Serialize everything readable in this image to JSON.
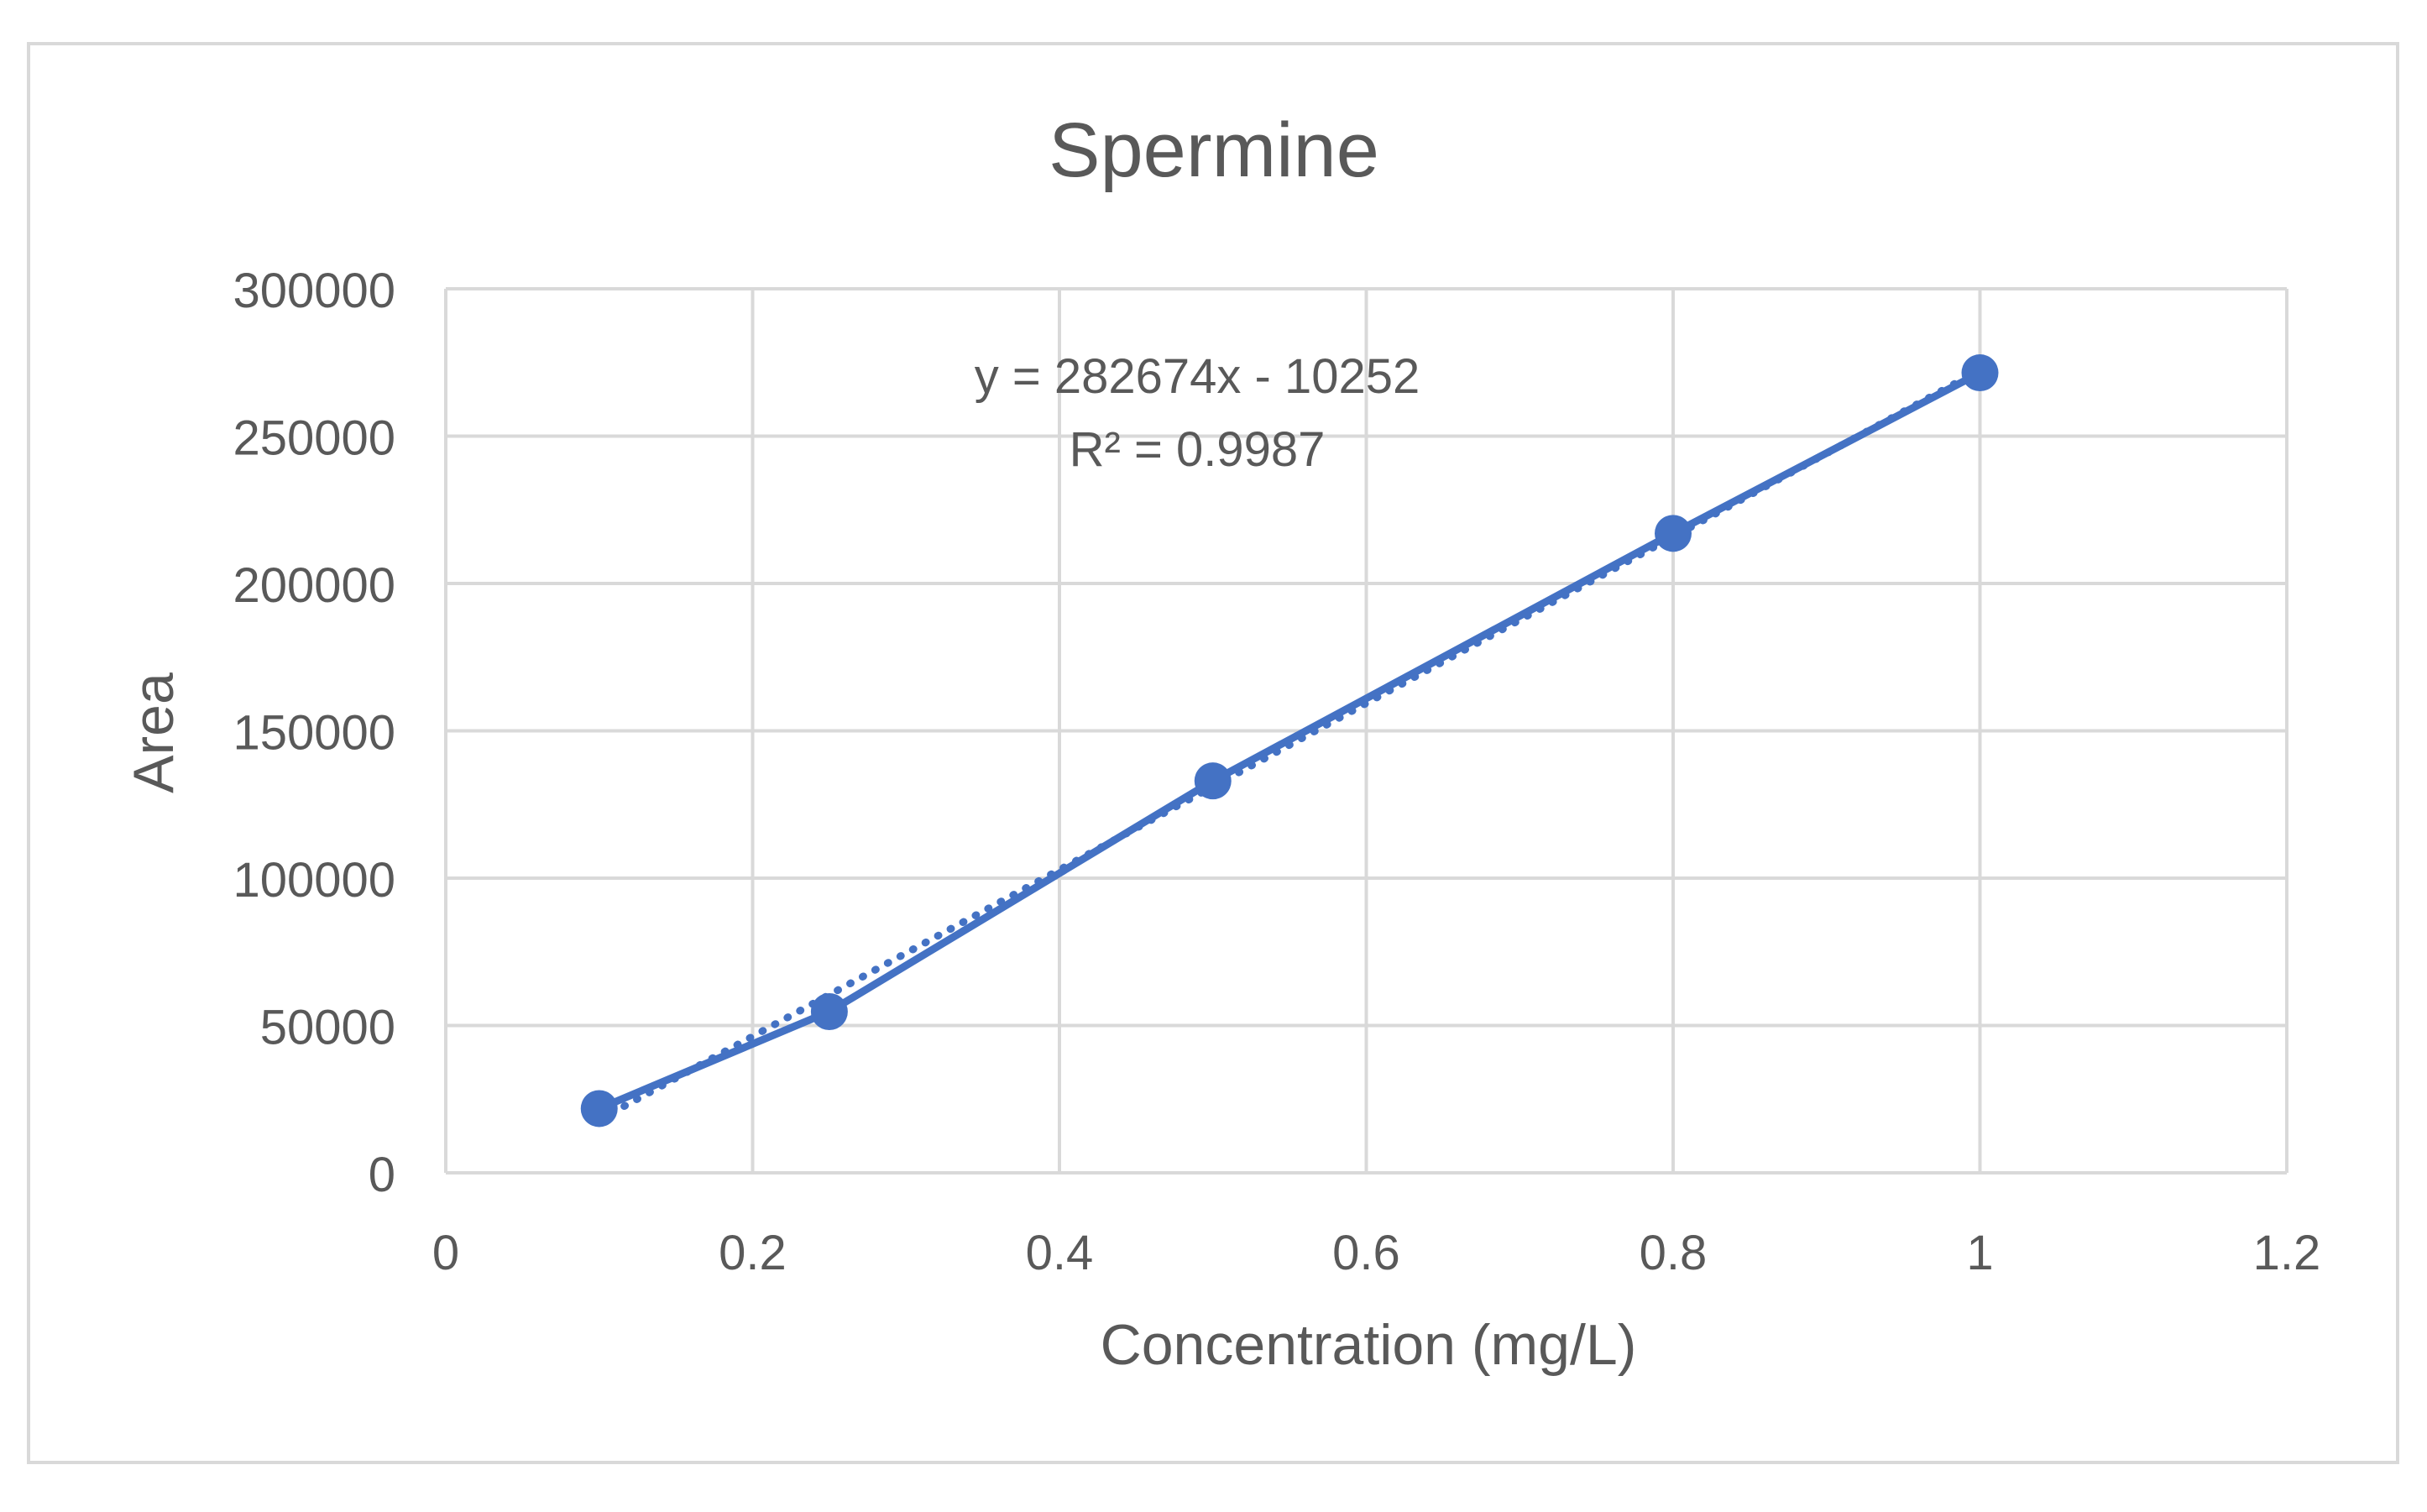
{
  "chart_data": {
    "type": "scatter",
    "title": "Spermine",
    "xlabel": "Concentration (mg/L)",
    "ylabel": "Area",
    "xlim": [
      0,
      1.2
    ],
    "ylim": [
      0,
      300000
    ],
    "x_ticks": [
      0,
      0.2,
      0.4,
      0.6,
      0.8,
      1,
      1.2
    ],
    "x_tick_labels": [
      "0",
      "0.2",
      "0.4",
      "0.6",
      "0.8",
      "1",
      "1.2"
    ],
    "y_ticks": [
      0,
      50000,
      100000,
      150000,
      200000,
      250000,
      300000
    ],
    "y_tick_labels": [
      "0",
      "50000",
      "100000",
      "150000",
      "200000",
      "250000",
      "300000"
    ],
    "grid": true,
    "series": [
      {
        "name": "Spermine",
        "x": [
          0.1,
          0.25,
          0.5,
          0.8,
          1.0
        ],
        "y": [
          21800,
          54700,
          133000,
          217000,
          271500
        ],
        "color": "#4472C4",
        "line_style": "solid",
        "markers": true
      }
    ],
    "trendline": {
      "type": "linear",
      "slope": 282674,
      "intercept": -10252,
      "x_range": [
        0.1,
        1.0
      ],
      "color": "#4472C4",
      "line_style": "dotted",
      "equation_label": "y = 282674x - 10252",
      "r2_label": "R² = 0.9987"
    }
  },
  "colors": {
    "series": "#4472C4",
    "grid": "#d9d9d9",
    "text": "#595959",
    "frame": "#d9d9d9",
    "background": "#ffffff"
  }
}
